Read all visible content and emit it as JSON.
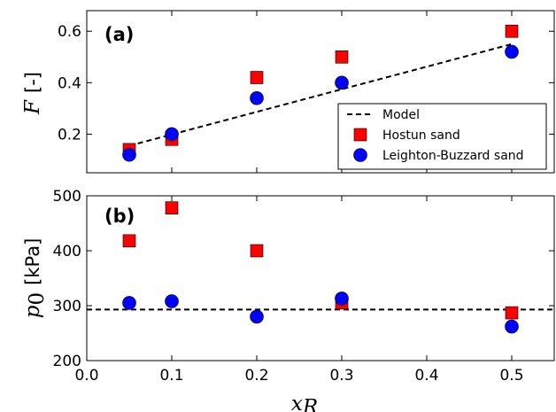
{
  "chart_data": [
    {
      "type": "scatter",
      "panel_label": "(a)",
      "ylabel_var": "F",
      "ylabel_unit": "[-]",
      "ylim": [
        0.05,
        0.68
      ],
      "xlim": [
        0.0,
        0.55
      ],
      "yticks": [
        "0.2",
        "0.4",
        "0.6"
      ],
      "series": [
        {
          "name": "Hostun sand",
          "marker": "square",
          "color": "#ff0000",
          "x": [
            0.05,
            0.1,
            0.2,
            0.3,
            0.5
          ],
          "y": [
            0.14,
            0.18,
            0.42,
            0.5,
            0.6
          ]
        },
        {
          "name": "Leighton-Buzzard sand",
          "marker": "circle",
          "color": "#0000ff",
          "x": [
            0.05,
            0.1,
            0.2,
            0.3,
            0.5
          ],
          "y": [
            0.12,
            0.2,
            0.34,
            0.4,
            0.52
          ]
        }
      ],
      "model": {
        "name": "Model",
        "x": [
          0.05,
          0.5
        ],
        "y": [
          0.155,
          0.55
        ]
      },
      "legend": {
        "placement": "lower-right",
        "entries": [
          "Model",
          "Hostun sand",
          "Leighton-Buzzard sand"
        ]
      }
    },
    {
      "type": "scatter",
      "panel_label": "(b)",
      "ylabel_var": "p",
      "ylabel_sub": "0",
      "ylabel_unit": "[kPa]",
      "ylim": [
        200,
        500
      ],
      "xlim": [
        0.0,
        0.55
      ],
      "yticks": [
        "200",
        "300",
        "400",
        "500"
      ],
      "series": [
        {
          "name": "Hostun sand",
          "marker": "square",
          "color": "#ff0000",
          "x": [
            0.05,
            0.1,
            0.2,
            0.3,
            0.5
          ],
          "y": [
            418,
            478,
            400,
            305,
            287
          ]
        },
        {
          "name": "Leighton-Buzzard sand",
          "marker": "circle",
          "color": "#0000ff",
          "x": [
            0.05,
            0.1,
            0.2,
            0.3,
            0.5
          ],
          "y": [
            305,
            308,
            280,
            313,
            262
          ]
        }
      ],
      "model": {
        "name": "Model",
        "y_const": 293
      }
    }
  ],
  "xaxis": {
    "label_var": "x",
    "label_sub": "R",
    "ticks": [
      "0.0",
      "0.1",
      "0.2",
      "0.3",
      "0.4",
      "0.5"
    ]
  }
}
